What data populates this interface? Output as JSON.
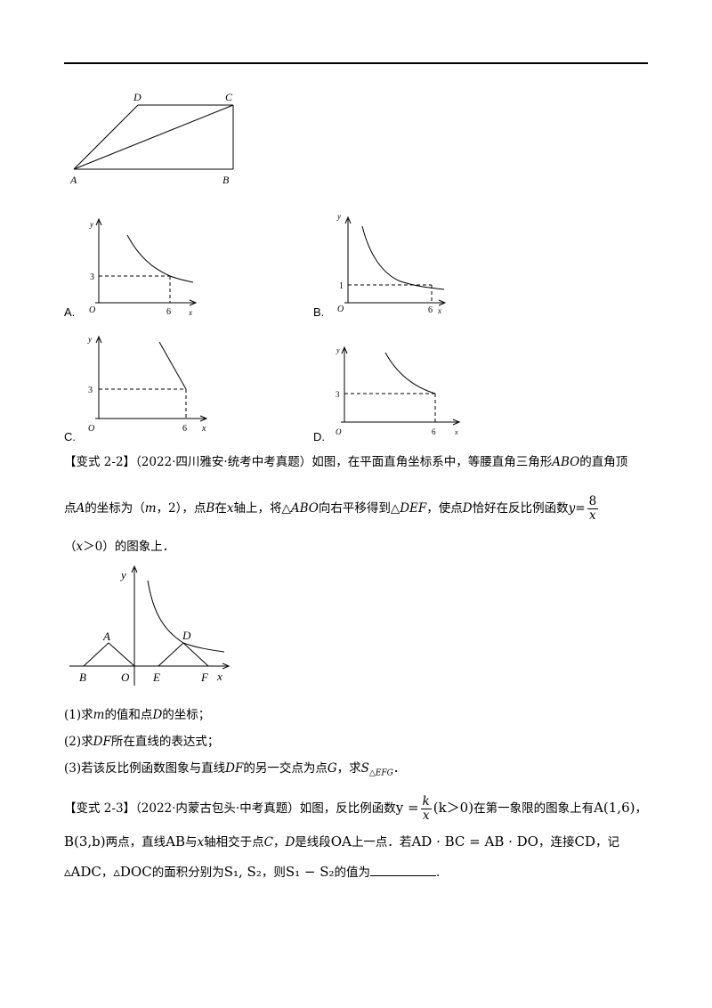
{
  "top_figure": {
    "labels": {
      "A": "A",
      "B": "B",
      "C": "C",
      "D": "D"
    }
  },
  "options": [
    {
      "letter": "A.",
      "y_label": "y",
      "x_label": "x",
      "origin": "O",
      "y_tick": "3",
      "x_tick": "6"
    },
    {
      "letter": "B.",
      "y_label": "y",
      "x_label": "x",
      "origin": "O",
      "y_tick": "1",
      "x_tick": "6"
    },
    {
      "letter": "C.",
      "y_label": "y",
      "x_label": "x",
      "origin": "O",
      "y_tick": "3",
      "x_tick": "6"
    },
    {
      "letter": "D.",
      "y_label": "y",
      "x_label": "x",
      "origin": "O",
      "y_tick": "3",
      "x_tick": "6"
    }
  ],
  "problem_2_2": {
    "tag": "【变式 2-2】",
    "source": "（2022·四川雅安·统考中考真题）",
    "line1_a": "如图，在平面直角坐标系中，等腰直角三角形",
    "abo": "ABO",
    "line1_b": "的直角顶",
    "line2_a": "点",
    "a": "A",
    "line2_b": "的坐标为（",
    "m": "m",
    "line2_c": "，2），点",
    "b": "B",
    "line2_d": "在",
    "x": "x",
    "line2_e": "轴上，将△",
    "line2_f": "向右平移得到△",
    "def": "DEF",
    "line2_g": "，使点",
    "d": "D",
    "line2_h": "恰好在反比例函数",
    "y_eq": "y=",
    "frac_num": "8",
    "frac_den": "x",
    "line3_a": "（",
    "line3_b": "＞0）的图象上．",
    "figure_labels": {
      "y": "y",
      "x": "x",
      "A": "A",
      "B": "B",
      "O": "O",
      "D": "D",
      "E": "E",
      "F": "F"
    },
    "q1_a": "(1)求",
    "q1_b": "的值和点",
    "q1_c": "的坐标；",
    "q2_a": "(2)求",
    "df": "DF",
    "q2_b": "所在直线的表达式；",
    "q3_a": "(3)若该反比例函数图象与直线",
    "q3_b": "的另一交点为点",
    "g": "G",
    "q3_c": "，求",
    "s_efg": "S",
    "s_sub": "△EFG",
    "q3_d": "．"
  },
  "problem_2_3": {
    "tag": "【变式 2-3】",
    "source": "（2022·内蒙古包头·中考真题）",
    "l1_a": "如图，反比例函数",
    "y_eq": "y =",
    "frac_num": "k",
    "frac_den": "x",
    "cond": "(k＞0)",
    "l1_b": "在第一象限的图象上有",
    "pt_a": "A(1,6)",
    "l1_c": "，",
    "pt_b": "B(3,b)",
    "l2_a": "两点，直线",
    "ab": "AB",
    "l2_b": "与",
    "x": "x",
    "l2_c": "轴相交于点",
    "c": "C",
    "l2_d": "，",
    "d": "D",
    "l2_e": "是线段",
    "oa": "OA",
    "l2_f": "上一点．若",
    "eq": "AD · BC = AB · DO",
    "l2_g": "，连接",
    "cd": "CD",
    "l2_h": "，记",
    "tri1": "▵ADC",
    "l3_a": "，",
    "tri2": "▵DOC",
    "l3_b": "的面积分别为",
    "s12": "S₁, S₂",
    "l3_c": "，则",
    "sdiff": "S₁ − S₂",
    "l3_d": "的值为",
    "l3_e": "."
  }
}
